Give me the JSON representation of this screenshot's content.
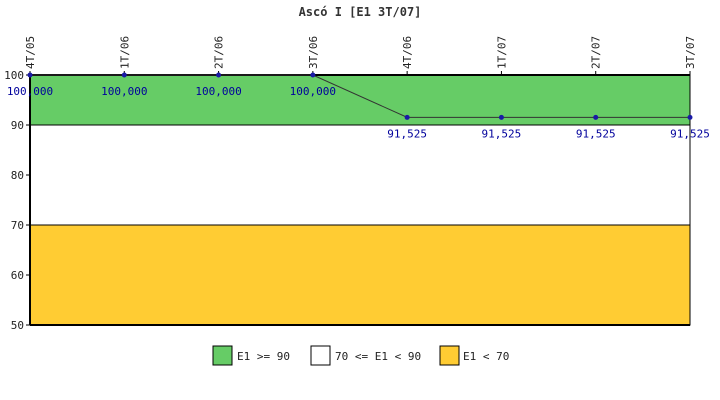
{
  "chart_data": {
    "type": "line",
    "title": "Ascó I [E1 3T/07]",
    "categories": [
      "4T/05",
      "1T/06",
      "2T/06",
      "3T/06",
      "4T/06",
      "1T/07",
      "2T/07",
      "3T/07"
    ],
    "values": [
      100,
      100,
      100,
      100,
      91.525,
      91.525,
      91.525,
      91.525
    ],
    "data_labels": [
      "100,000",
      "100,000",
      "100,000",
      "100,000",
      "91,525",
      "91,525",
      "91,525",
      "91,525"
    ],
    "ylim": [
      50,
      100
    ],
    "yticks": [
      "50",
      "60",
      "70",
      "80",
      "90",
      "100"
    ],
    "bands": [
      {
        "from": 90,
        "to": 100,
        "color": "#66cc66",
        "label": "E1 >= 90"
      },
      {
        "from": 70,
        "to": 90,
        "color": "#ffffff",
        "label": "70 <= E1 < 90"
      },
      {
        "from": 50,
        "to": 70,
        "color": "#ffcc33",
        "label": "E1 < 70"
      }
    ],
    "series_color": "#333333",
    "point_color": "#1a1aa6",
    "legend_position": "bottom"
  }
}
